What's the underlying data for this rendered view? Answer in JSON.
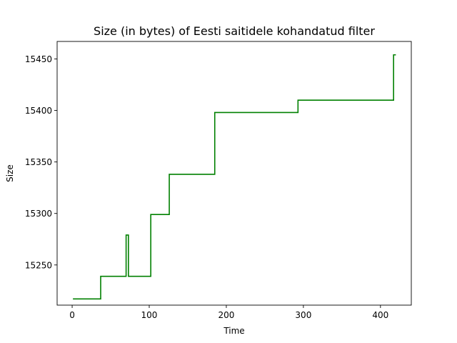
{
  "chart_data": {
    "type": "line",
    "title": "Size (in bytes) of Eesti saitidele kohandatud filter",
    "xlabel": "Time",
    "ylabel": "Size",
    "xlim": [
      -19.5,
      440
    ],
    "ylim": [
      15211,
      15467
    ],
    "xticks": [
      0,
      100,
      200,
      300,
      400
    ],
    "yticks": [
      15250,
      15300,
      15350,
      15400,
      15450
    ],
    "grid": false,
    "series": [
      {
        "color": "#008000",
        "x": [
          1,
          37,
          37,
          70,
          70,
          73,
          73,
          102,
          102,
          126,
          126,
          185,
          185,
          293,
          293,
          417,
          417,
          420
        ],
        "y": [
          15217,
          15217,
          15239,
          15239,
          15279,
          15279,
          15239,
          15239,
          15299,
          15299,
          15338,
          15338,
          15398,
          15398,
          15410,
          15410,
          15454,
          15454
        ]
      }
    ]
  }
}
